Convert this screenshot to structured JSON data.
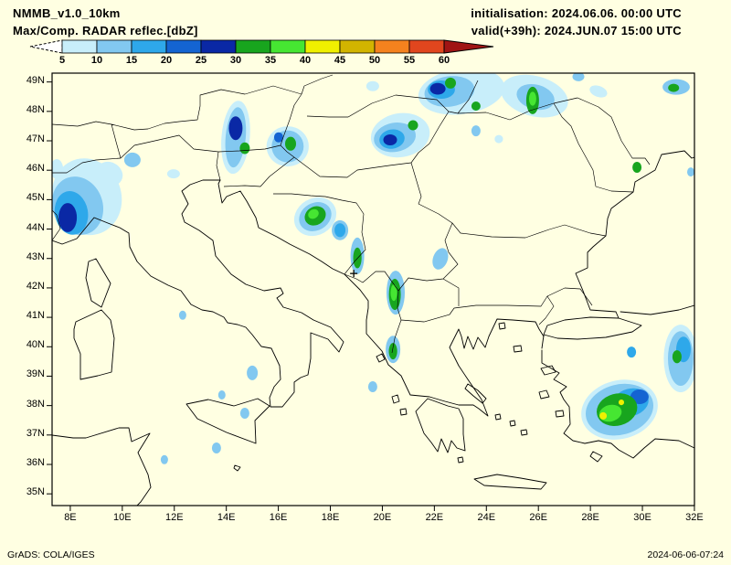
{
  "header": {
    "model": "NMMB_v1.0_10km",
    "product": "Max/Comp. RADAR reflec.[dbZ]",
    "init": "initialisation: 2024.06.06. 00:00 UTC",
    "valid": "valid(+39h): 2024.JUN.07 15:00 UTC"
  },
  "colorbar": {
    "unit": "dbZ",
    "ticks": [
      "5",
      "10",
      "15",
      "20",
      "25",
      "30",
      "35",
      "40",
      "45",
      "50",
      "55",
      "60"
    ],
    "segment_colors": [
      "#c8eefa",
      "#82c8f0",
      "#2ea8ea",
      "#1464d2",
      "#0a28a5",
      "#18a51e",
      "#46e632",
      "#f0f000",
      "#d2b400",
      "#f5821e",
      "#e1461e"
    ],
    "below_color": "#ffffff",
    "above_color": "#a01414"
  },
  "map": {
    "lat_labels": [
      "49N",
      "48N",
      "47N",
      "46N",
      "45N",
      "44N",
      "43N",
      "42N",
      "41N",
      "40N",
      "39N",
      "38N",
      "37N",
      "36N",
      "35N"
    ],
    "lon_labels": [
      "8E",
      "10E",
      "12E",
      "14E",
      "16E",
      "18E",
      "20E",
      "22E",
      "24E",
      "26E",
      "28E",
      "30E",
      "32E"
    ],
    "station_marker": {
      "lon": 18.9,
      "lat": 42.49
    }
  },
  "radar_echoes": [
    {
      "lon": 8.64,
      "lat": 45.1,
      "w": 2.64,
      "h": 2.64,
      "rot": -20,
      "dbz": 7
    },
    {
      "lon": 8.28,
      "lat": 44.79,
      "w": 1.93,
      "h": 2.02,
      "rot": -20,
      "dbz": 12
    },
    {
      "lon": 8.04,
      "lat": 44.55,
      "w": 1.27,
      "h": 1.49,
      "rot": -10,
      "dbz": 17
    },
    {
      "lon": 7.9,
      "lat": 44.39,
      "w": 0.7,
      "h": 0.99,
      "rot": 0,
      "dbz": 27
    },
    {
      "lon": 9.51,
      "lat": 45.88,
      "w": 1.05,
      "h": 0.78,
      "rot": 30,
      "dbz": 7
    },
    {
      "lon": 10.39,
      "lat": 46.35,
      "w": 0.63,
      "h": 0.5,
      "rot": 0,
      "dbz": 12
    },
    {
      "lon": 7.48,
      "lat": 46.04,
      "w": 0.49,
      "h": 0.68,
      "rot": 0,
      "dbz": 7
    },
    {
      "lon": 14.36,
      "lat": 47.12,
      "w": 1.09,
      "h": 2.49,
      "rot": 5,
      "dbz": 7
    },
    {
      "lon": 14.36,
      "lat": 47.12,
      "w": 0.77,
      "h": 2.05,
      "rot": 5,
      "dbz": 12
    },
    {
      "lon": 14.36,
      "lat": 47.43,
      "w": 0.53,
      "h": 0.81,
      "rot": 0,
      "dbz": 27
    },
    {
      "lon": 14.71,
      "lat": 46.75,
      "w": 0.39,
      "h": 0.4,
      "rot": 0,
      "dbz": 32
    },
    {
      "lon": 16.36,
      "lat": 46.81,
      "w": 1.62,
      "h": 1.37,
      "rot": 0,
      "dbz": 7
    },
    {
      "lon": 16.36,
      "lat": 46.81,
      "w": 1.23,
      "h": 1.09,
      "rot": 0,
      "dbz": 12
    },
    {
      "lon": 16.47,
      "lat": 46.9,
      "w": 0.42,
      "h": 0.47,
      "rot": 0,
      "dbz": 32
    },
    {
      "lon": 16.01,
      "lat": 47.12,
      "w": 0.35,
      "h": 0.34,
      "rot": 0,
      "dbz": 22
    },
    {
      "lon": 20.69,
      "lat": 47.19,
      "w": 2.28,
      "h": 1.49,
      "rot": -10,
      "dbz": 7
    },
    {
      "lon": 20.48,
      "lat": 47.12,
      "w": 1.62,
      "h": 0.99,
      "rot": -10,
      "dbz": 12
    },
    {
      "lon": 20.37,
      "lat": 47.06,
      "w": 0.98,
      "h": 0.65,
      "rot": -10,
      "dbz": 17
    },
    {
      "lon": 20.3,
      "lat": 47.03,
      "w": 0.53,
      "h": 0.37,
      "rot": 0,
      "dbz": 27
    },
    {
      "lon": 21.18,
      "lat": 47.53,
      "w": 0.39,
      "h": 0.34,
      "rot": 0,
      "dbz": 32
    },
    {
      "lon": 23.04,
      "lat": 48.68,
      "w": 3.34,
      "h": 1.55,
      "rot": -8,
      "dbz": 7
    },
    {
      "lon": 22.58,
      "lat": 48.68,
      "w": 1.93,
      "h": 1.03,
      "rot": -8,
      "dbz": 12
    },
    {
      "lon": 22.27,
      "lat": 48.74,
      "w": 1.05,
      "h": 0.62,
      "rot": 0,
      "dbz": 17
    },
    {
      "lon": 22.13,
      "lat": 48.77,
      "w": 0.6,
      "h": 0.4,
      "rot": 0,
      "dbz": 27
    },
    {
      "lon": 22.62,
      "lat": 48.96,
      "w": 0.42,
      "h": 0.37,
      "rot": 0,
      "dbz": 32
    },
    {
      "lon": 23.6,
      "lat": 48.18,
      "w": 0.35,
      "h": 0.31,
      "rot": 0,
      "dbz": 32
    },
    {
      "lon": 25.85,
      "lat": 48.52,
      "w": 2.64,
      "h": 1.37,
      "rot": 15,
      "dbz": 7
    },
    {
      "lon": 25.89,
      "lat": 48.49,
      "w": 1.48,
      "h": 0.84,
      "rot": 15,
      "dbz": 12
    },
    {
      "lon": 25.78,
      "lat": 48.37,
      "w": 0.49,
      "h": 0.93,
      "rot": 0,
      "dbz": 32
    },
    {
      "lon": 25.78,
      "lat": 48.43,
      "w": 0.28,
      "h": 0.47,
      "rot": 0,
      "dbz": 37
    },
    {
      "lon": 27.54,
      "lat": 49.18,
      "w": 0.46,
      "h": 0.31,
      "rot": 0,
      "dbz": 12
    },
    {
      "lon": 23.6,
      "lat": 47.34,
      "w": 0.35,
      "h": 0.37,
      "rot": 0,
      "dbz": 12
    },
    {
      "lon": 24.48,
      "lat": 47.06,
      "w": 0.32,
      "h": 0.28,
      "rot": 0,
      "dbz": 7
    },
    {
      "lon": 19.63,
      "lat": 48.86,
      "w": 0.49,
      "h": 0.34,
      "rot": 0,
      "dbz": 7
    },
    {
      "lon": 28.31,
      "lat": 48.68,
      "w": 0.7,
      "h": 0.37,
      "rot": 20,
      "dbz": 7
    },
    {
      "lon": 31.3,
      "lat": 48.83,
      "w": 1.05,
      "h": 0.53,
      "rot": 0,
      "dbz": 12
    },
    {
      "lon": 31.2,
      "lat": 48.8,
      "w": 0.42,
      "h": 0.28,
      "rot": 0,
      "dbz": 32
    },
    {
      "lon": 29.79,
      "lat": 46.1,
      "w": 0.35,
      "h": 0.37,
      "rot": 0,
      "dbz": 32
    },
    {
      "lon": 31.86,
      "lat": 45.94,
      "w": 0.28,
      "h": 0.31,
      "rot": 0,
      "dbz": 12
    },
    {
      "lon": 17.42,
      "lat": 44.42,
      "w": 1.69,
      "h": 1.24,
      "rot": -30,
      "dbz": 7
    },
    {
      "lon": 17.42,
      "lat": 44.42,
      "w": 1.3,
      "h": 0.93,
      "rot": -30,
      "dbz": 12
    },
    {
      "lon": 17.42,
      "lat": 44.45,
      "w": 0.84,
      "h": 0.62,
      "rot": -30,
      "dbz": 32
    },
    {
      "lon": 17.35,
      "lat": 44.51,
      "w": 0.42,
      "h": 0.31,
      "rot": -30,
      "dbz": 37
    },
    {
      "lon": 18.37,
      "lat": 43.96,
      "w": 0.63,
      "h": 0.68,
      "rot": 0,
      "dbz": 12
    },
    {
      "lon": 18.37,
      "lat": 43.96,
      "w": 0.42,
      "h": 0.47,
      "rot": 0,
      "dbz": 17
    },
    {
      "lon": 19.04,
      "lat": 43.09,
      "w": 0.53,
      "h": 1.24,
      "rot": 0,
      "dbz": 12
    },
    {
      "lon": 19.04,
      "lat": 43.02,
      "w": 0.32,
      "h": 0.71,
      "rot": 0,
      "dbz": 32
    },
    {
      "lon": 20.51,
      "lat": 41.84,
      "w": 0.7,
      "h": 1.49,
      "rot": 0,
      "dbz": 12
    },
    {
      "lon": 20.48,
      "lat": 41.78,
      "w": 0.46,
      "h": 1.06,
      "rot": 0,
      "dbz": 32
    },
    {
      "lon": 20.44,
      "lat": 41.84,
      "w": 0.25,
      "h": 0.56,
      "rot": 0,
      "dbz": 37
    },
    {
      "lon": 22.23,
      "lat": 42.99,
      "w": 0.56,
      "h": 0.75,
      "rot": 20,
      "dbz": 12
    },
    {
      "lon": 20.41,
      "lat": 39.91,
      "w": 0.56,
      "h": 0.93,
      "rot": 0,
      "dbz": 12
    },
    {
      "lon": 20.41,
      "lat": 39.85,
      "w": 0.32,
      "h": 0.56,
      "rot": 0,
      "dbz": 32
    },
    {
      "lon": 19.63,
      "lat": 38.64,
      "w": 0.35,
      "h": 0.37,
      "rot": 0,
      "dbz": 12
    },
    {
      "lon": 15.0,
      "lat": 39.11,
      "w": 0.42,
      "h": 0.5,
      "rot": 0,
      "dbz": 12
    },
    {
      "lon": 14.71,
      "lat": 37.74,
      "w": 0.35,
      "h": 0.37,
      "rot": 0,
      "dbz": 12
    },
    {
      "lon": 12.32,
      "lat": 41.07,
      "w": 0.28,
      "h": 0.31,
      "rot": 0,
      "dbz": 12
    },
    {
      "lon": 13.83,
      "lat": 38.36,
      "w": 0.28,
      "h": 0.31,
      "rot": 0,
      "dbz": 12
    },
    {
      "lon": 13.62,
      "lat": 36.56,
      "w": 0.35,
      "h": 0.37,
      "rot": 0,
      "dbz": 12
    },
    {
      "lon": 11.62,
      "lat": 36.16,
      "w": 0.28,
      "h": 0.31,
      "rot": 0,
      "dbz": 12
    },
    {
      "lon": 29.12,
      "lat": 37.86,
      "w": 2.99,
      "h": 1.99,
      "rot": -15,
      "dbz": 7
    },
    {
      "lon": 29.12,
      "lat": 37.86,
      "w": 2.64,
      "h": 1.71,
      "rot": -15,
      "dbz": 12
    },
    {
      "lon": 29.54,
      "lat": 38.11,
      "w": 1.41,
      "h": 0.93,
      "rot": -15,
      "dbz": 17
    },
    {
      "lon": 29.89,
      "lat": 38.3,
      "w": 0.7,
      "h": 0.5,
      "rot": 0,
      "dbz": 22
    },
    {
      "lon": 29.02,
      "lat": 37.86,
      "w": 1.58,
      "h": 1.09,
      "rot": -15,
      "dbz": 32
    },
    {
      "lon": 28.77,
      "lat": 37.74,
      "w": 0.88,
      "h": 0.56,
      "rot": -15,
      "dbz": 37
    },
    {
      "lon": 28.49,
      "lat": 37.65,
      "w": 0.28,
      "h": 0.25,
      "rot": 0,
      "dbz": 42
    },
    {
      "lon": 29.19,
      "lat": 38.11,
      "w": 0.21,
      "h": 0.19,
      "rot": 0,
      "dbz": 42
    },
    {
      "lon": 31.47,
      "lat": 39.6,
      "w": 1.3,
      "h": 2.3,
      "rot": 0,
      "dbz": 7
    },
    {
      "lon": 31.47,
      "lat": 39.6,
      "w": 0.98,
      "h": 1.86,
      "rot": 0,
      "dbz": 12
    },
    {
      "lon": 31.58,
      "lat": 39.91,
      "w": 0.56,
      "h": 0.87,
      "rot": 0,
      "dbz": 17
    },
    {
      "lon": 31.33,
      "lat": 39.66,
      "w": 0.35,
      "h": 0.44,
      "rot": 0,
      "dbz": 32
    },
    {
      "lon": 29.58,
      "lat": 39.82,
      "w": 0.35,
      "h": 0.37,
      "rot": 0,
      "dbz": 17
    },
    {
      "lon": 11.97,
      "lat": 45.88,
      "w": 0.49,
      "h": 0.31,
      "rot": 0,
      "dbz": 7
    }
  ],
  "footer": {
    "credit": "GrADS: COLA/IGES",
    "timestamp": "2024-06-06-07:24"
  }
}
